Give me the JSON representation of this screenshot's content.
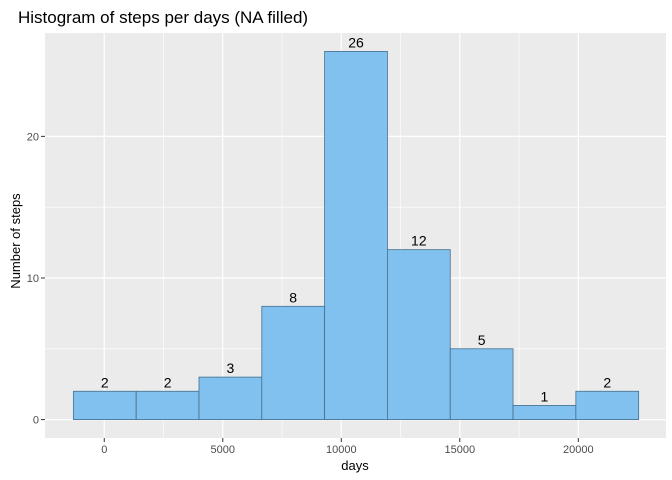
{
  "chart_data": {
    "type": "bar",
    "title": "Histogram of steps per days (NA filled)",
    "xlabel": "days",
    "ylabel": "Number of steps",
    "bins": [
      {
        "x0": -1303,
        "x1": 1347,
        "count": 2
      },
      {
        "x0": 1347,
        "x1": 3997,
        "count": 2
      },
      {
        "x0": 3997,
        "x1": 6647,
        "count": 3
      },
      {
        "x0": 6647,
        "x1": 9297,
        "count": 8
      },
      {
        "x0": 9297,
        "x1": 11947,
        "count": 26
      },
      {
        "x0": 11947,
        "x1": 14597,
        "count": 12
      },
      {
        "x0": 14597,
        "x1": 17247,
        "count": 5
      },
      {
        "x0": 17247,
        "x1": 19897,
        "count": 1
      },
      {
        "x0": 19897,
        "x1": 22547,
        "count": 2
      }
    ],
    "xticks": [
      0,
      5000,
      10000,
      15000,
      20000
    ],
    "xtick_labels": [
      "0",
      "5000",
      "10000",
      "15000",
      "20000"
    ],
    "yticks": [
      0,
      10,
      20
    ],
    "ytick_labels": [
      "0",
      "10",
      "20"
    ],
    "xlim": [
      -2500,
      23700
    ],
    "ylim": [
      -1.3,
      27.3
    ],
    "grid": true,
    "bar_fill": "#80c1ef",
    "bar_stroke": "#466f8c",
    "panel_background": "#ebebeb",
    "grid_color": "#ffffff"
  }
}
